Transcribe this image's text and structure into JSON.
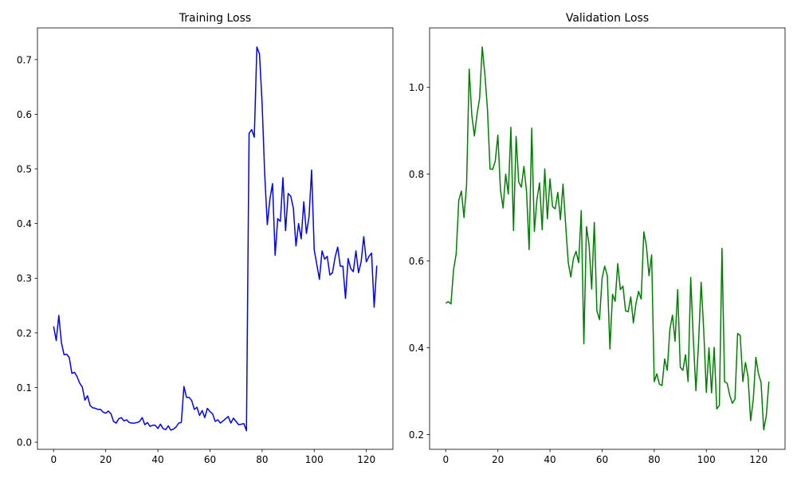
{
  "chart_data": [
    {
      "type": "line",
      "title": "Training Loss",
      "xlabel": "",
      "ylabel": "",
      "xlim": [
        -6.2,
        130.2
      ],
      "ylim": [
        -0.013,
        0.758
      ],
      "xticks": [
        0,
        20,
        40,
        60,
        80,
        100,
        120
      ],
      "yticks": [
        0.0,
        0.1,
        0.2,
        0.3,
        0.4,
        0.5,
        0.6,
        0.7
      ],
      "ytick_labels": [
        "0.0",
        "0.1",
        "0.2",
        "0.3",
        "0.4",
        "0.5",
        "0.6",
        "0.7"
      ],
      "grid": false,
      "series": [
        {
          "color": "#0000ff",
          "values": [
            0.212,
            0.186,
            0.232,
            0.182,
            0.16,
            0.161,
            0.155,
            0.126,
            0.128,
            0.12,
            0.108,
            0.101,
            0.077,
            0.085,
            0.067,
            0.063,
            0.062,
            0.06,
            0.06,
            0.055,
            0.053,
            0.057,
            0.052,
            0.038,
            0.035,
            0.043,
            0.045,
            0.039,
            0.041,
            0.036,
            0.035,
            0.035,
            0.036,
            0.038,
            0.045,
            0.032,
            0.036,
            0.029,
            0.031,
            0.031,
            0.025,
            0.033,
            0.025,
            0.023,
            0.03,
            0.022,
            0.024,
            0.028,
            0.035,
            0.036,
            0.102,
            0.082,
            0.082,
            0.076,
            0.06,
            0.064,
            0.049,
            0.058,
            0.045,
            0.062,
            0.056,
            0.052,
            0.038,
            0.041,
            0.035,
            0.039,
            0.043,
            0.047,
            0.035,
            0.044,
            0.038,
            0.032,
            0.033,
            0.034,
            0.021,
            0.565,
            0.572,
            0.558,
            0.723,
            0.71,
            0.62,
            0.49,
            0.398,
            0.445,
            0.473,
            0.342,
            0.409,
            0.404,
            0.484,
            0.387,
            0.455,
            0.45,
            0.428,
            0.359,
            0.4,
            0.372,
            0.44,
            0.382,
            0.412,
            0.498,
            0.352,
            0.325,
            0.298,
            0.35,
            0.335,
            0.34,
            0.306,
            0.31,
            0.338,
            0.357,
            0.322,
            0.322,
            0.263,
            0.336,
            0.318,
            0.312,
            0.35,
            0.31,
            0.33,
            0.376,
            0.33,
            0.34,
            0.346,
            0.247,
            0.323
          ]
        }
      ]
    },
    {
      "type": "line",
      "title": "Validation Loss",
      "xlabel": "",
      "ylabel": "",
      "xlim": [
        -6.2,
        130.2
      ],
      "ylim": [
        0.166,
        1.137
      ],
      "xticks": [
        0,
        20,
        40,
        60,
        80,
        100,
        120
      ],
      "yticks": [
        0.2,
        0.4,
        0.6,
        0.8,
        1.0
      ],
      "ytick_labels": [
        "0.2",
        "0.4",
        "0.6",
        "0.8",
        "1.0"
      ],
      "grid": false,
      "series": [
        {
          "color": "#008000",
          "values": [
            0.503,
            0.506,
            0.501,
            0.58,
            0.616,
            0.74,
            0.761,
            0.7,
            0.775,
            1.042,
            0.936,
            0.888,
            0.938,
            0.975,
            1.093,
            1.031,
            0.95,
            0.812,
            0.811,
            0.83,
            0.89,
            0.763,
            0.722,
            0.8,
            0.754,
            0.908,
            0.67,
            0.887,
            0.782,
            0.77,
            0.818,
            0.76,
            0.626,
            0.906,
            0.668,
            0.742,
            0.78,
            0.672,
            0.812,
            0.697,
            0.789,
            0.725,
            0.72,
            0.758,
            0.695,
            0.777,
            0.685,
            0.597,
            0.563,
            0.606,
            0.622,
            0.596,
            0.716,
            0.409,
            0.679,
            0.637,
            0.535,
            0.689,
            0.485,
            0.465,
            0.56,
            0.588,
            0.566,
            0.397,
            0.523,
            0.507,
            0.594,
            0.534,
            0.542,
            0.485,
            0.483,
            0.517,
            0.457,
            0.502,
            0.53,
            0.512,
            0.667,
            0.634,
            0.566,
            0.614,
            0.322,
            0.34,
            0.316,
            0.313,
            0.374,
            0.348,
            0.442,
            0.475,
            0.415,
            0.534,
            0.355,
            0.348,
            0.384,
            0.322,
            0.562,
            0.42,
            0.301,
            0.41,
            0.551,
            0.44,
            0.297,
            0.4,
            0.296,
            0.401,
            0.259,
            0.267,
            0.629,
            0.322,
            0.318,
            0.29,
            0.272,
            0.282,
            0.433,
            0.428,
            0.322,
            0.366,
            0.333,
            0.232,
            0.28,
            0.378,
            0.34,
            0.32,
            0.211,
            0.243,
            0.322
          ]
        }
      ]
    }
  ]
}
